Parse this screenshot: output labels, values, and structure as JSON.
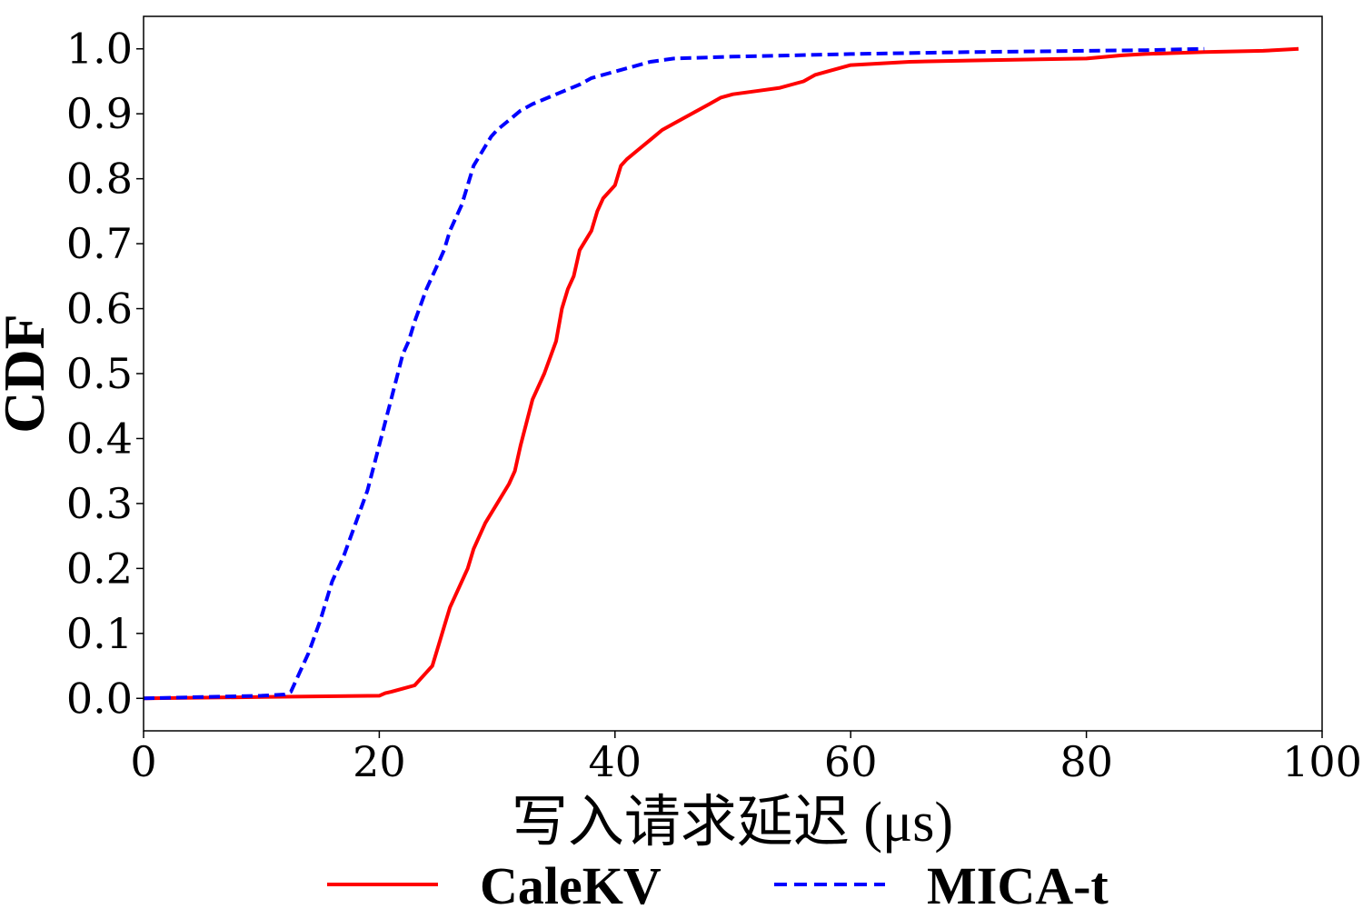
{
  "chart_data": {
    "type": "line",
    "title": "",
    "xlabel": "写入请求延迟 (μs)",
    "ylabel": "CDF",
    "xlim": [
      0,
      100
    ],
    "ylim": [
      -0.05,
      1.05
    ],
    "xticks": [
      0,
      20,
      40,
      60,
      80,
      100
    ],
    "xtick_labels": [
      "0",
      "20",
      "40",
      "60",
      "80",
      "100"
    ],
    "yticks": [
      0.0,
      0.1,
      0.2,
      0.3,
      0.4,
      0.5,
      0.6,
      0.7,
      0.8,
      0.9,
      1.0
    ],
    "ytick_labels": [
      "0.0",
      "0.1",
      "0.2",
      "0.3",
      "0.4",
      "0.5",
      "0.6",
      "0.7",
      "0.8",
      "0.9",
      "1.0"
    ],
    "grid": false,
    "legend_placement": "bottom, outside plot",
    "series": [
      {
        "name": "CaleKV",
        "color": "#ff0000",
        "style": "solid",
        "x": [
          0,
          10,
          20,
          20.5,
          21,
          22,
          23,
          24,
          24.5,
          25,
          25.5,
          26,
          27,
          27.5,
          28,
          29,
          30,
          31,
          31.5,
          32,
          33,
          34,
          35,
          35.5,
          36,
          36.5,
          37,
          38,
          38.5,
          39,
          40,
          40.5,
          41,
          42,
          43,
          44,
          45,
          46,
          47,
          48,
          49,
          50,
          52,
          54,
          55,
          56,
          57,
          58,
          60,
          65,
          70,
          80,
          83,
          85,
          90,
          95,
          98
        ],
        "y": [
          0.0,
          0.002,
          0.004,
          0.008,
          0.01,
          0.015,
          0.02,
          0.04,
          0.05,
          0.08,
          0.11,
          0.14,
          0.18,
          0.2,
          0.23,
          0.27,
          0.3,
          0.33,
          0.35,
          0.39,
          0.46,
          0.5,
          0.55,
          0.6,
          0.63,
          0.65,
          0.69,
          0.72,
          0.75,
          0.77,
          0.79,
          0.82,
          0.83,
          0.845,
          0.86,
          0.875,
          0.885,
          0.895,
          0.905,
          0.915,
          0.925,
          0.93,
          0.935,
          0.94,
          0.945,
          0.95,
          0.96,
          0.965,
          0.975,
          0.98,
          0.982,
          0.985,
          0.99,
          0.992,
          0.995,
          0.997,
          1.0
        ]
      },
      {
        "name": "MICA-t",
        "color": "#0000ff",
        "style": "dashed",
        "x": [
          0,
          5,
          10,
          12,
          12.5,
          13,
          14,
          15,
          16,
          17,
          18,
          19,
          20,
          21,
          22,
          22.5,
          23,
          24,
          25,
          25.5,
          26,
          27,
          27.5,
          28,
          29,
          29.5,
          30,
          31,
          32,
          33,
          35,
          37,
          38,
          40,
          42,
          43,
          45,
          50,
          55,
          60,
          70,
          80,
          85,
          90
        ],
        "y": [
          0.0,
          0.002,
          0.004,
          0.006,
          0.01,
          0.03,
          0.07,
          0.12,
          0.18,
          0.22,
          0.27,
          0.32,
          0.39,
          0.46,
          0.53,
          0.55,
          0.58,
          0.63,
          0.67,
          0.69,
          0.72,
          0.76,
          0.79,
          0.82,
          0.85,
          0.865,
          0.875,
          0.89,
          0.905,
          0.915,
          0.93,
          0.945,
          0.955,
          0.965,
          0.975,
          0.98,
          0.985,
          0.988,
          0.99,
          0.992,
          0.995,
          0.997,
          0.998,
          1.0
        ]
      }
    ]
  }
}
